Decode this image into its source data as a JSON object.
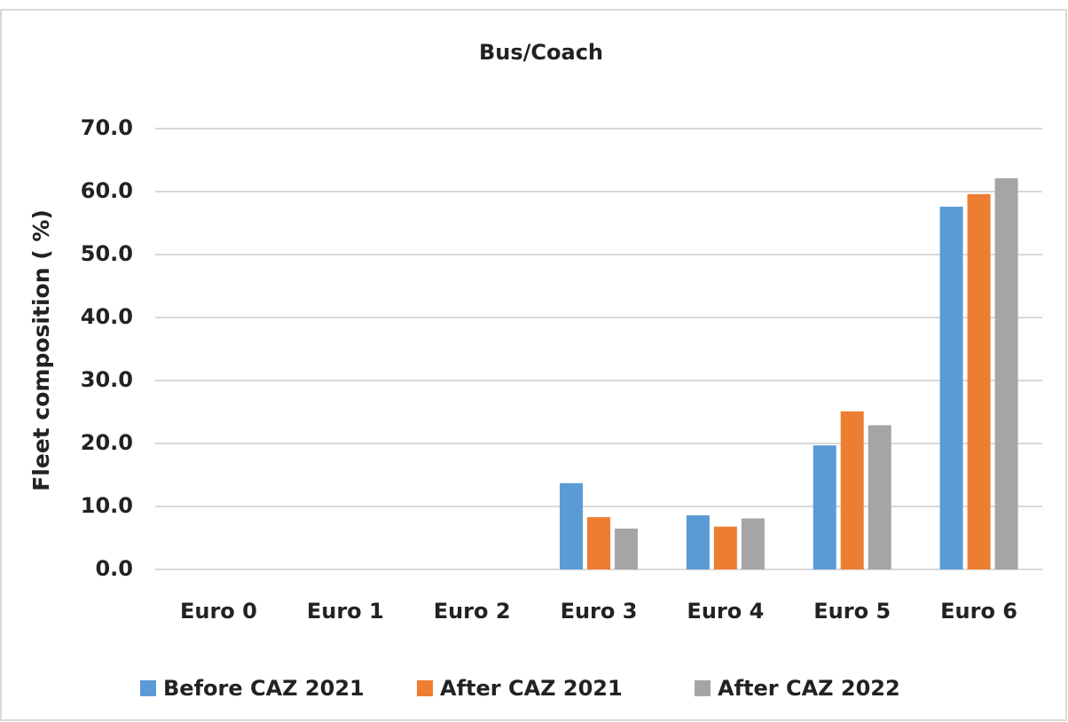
{
  "chart_data": {
    "type": "bar",
    "title": "Bus/Coach",
    "y_label": "Fleet composition ( %)",
    "categories": [
      "Euro 0",
      "Euro 1",
      "Euro 2",
      "Euro 3",
      "Euro 4",
      "Euro 5",
      "Euro 6"
    ],
    "series": [
      {
        "name": "Before CAZ 2021",
        "color": "#5b9bd5",
        "values": [
          0,
          0,
          0,
          13.7,
          8.6,
          19.7,
          57.6
        ]
      },
      {
        "name": "After CAZ 2021",
        "color": "#ed7d31",
        "values": [
          0,
          0,
          0,
          8.3,
          6.8,
          25.1,
          59.6
        ]
      },
      {
        "name": "After CAZ 2022",
        "color": "#a5a5a5",
        "values": [
          0,
          0,
          0,
          6.5,
          8.1,
          22.9,
          62.1
        ]
      }
    ],
    "ylim": [
      0,
      70
    ],
    "yticks": [
      {
        "value": 0,
        "label": "0.0"
      },
      {
        "value": 10,
        "label": "10.0"
      },
      {
        "value": 20,
        "label": "20.0"
      },
      {
        "value": 30,
        "label": "30.0"
      },
      {
        "value": 40,
        "label": "40.0"
      },
      {
        "value": 50,
        "label": "50.0"
      },
      {
        "value": 60,
        "label": "60.0"
      },
      {
        "value": 70,
        "label": "70.0"
      }
    ],
    "grid": true,
    "legend": "bottom"
  }
}
